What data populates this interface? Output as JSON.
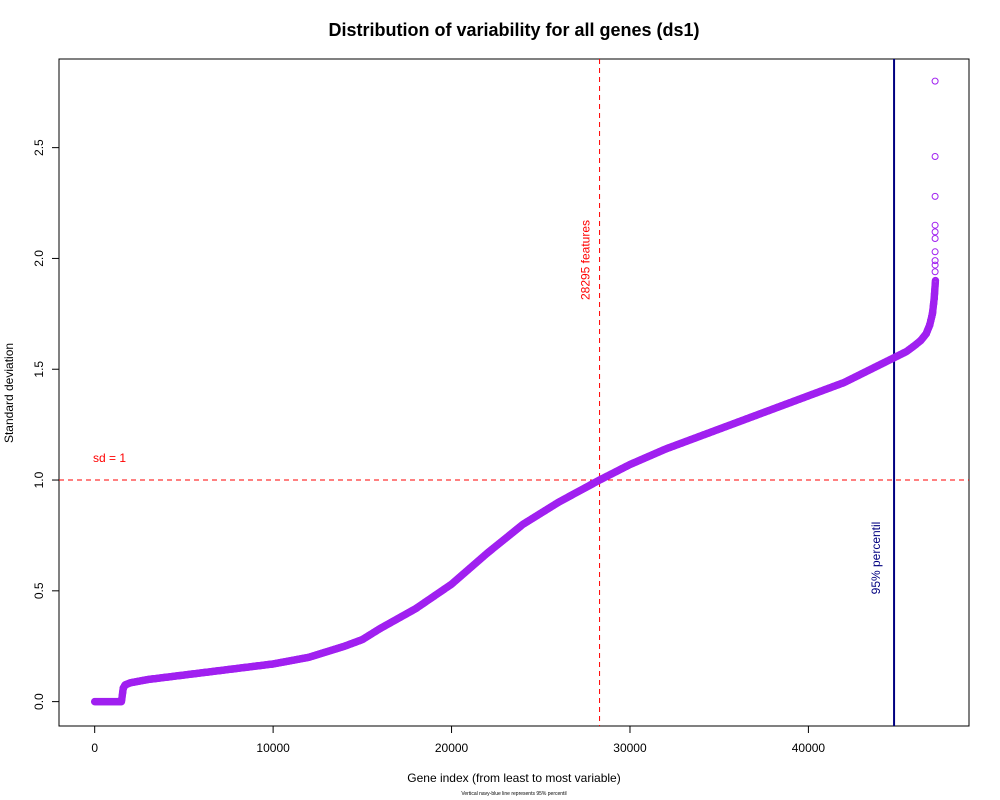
{
  "chart_data": {
    "type": "scatter",
    "title": "Distribution of variability for all genes (ds1)",
    "xlabel": "Gene index (from least to most variable)",
    "ylabel": "Standard deviation",
    "subtitle": "Vertical navy-blue line represents 95% percentil",
    "xlim": [
      -2000,
      49000
    ],
    "ylim": [
      -0.11,
      2.9
    ],
    "x_ticks": [
      0,
      10000,
      20000,
      30000,
      40000
    ],
    "x_tick_labels": [
      "0",
      "10000",
      "20000",
      "30000",
      "40000"
    ],
    "y_ticks": [
      0.0,
      0.5,
      1.0,
      1.5,
      2.0,
      2.5
    ],
    "y_tick_labels": [
      "0.0",
      "0.5",
      "1.0",
      "1.5",
      "2.0",
      "2.5"
    ],
    "grid": false,
    "point_color": "#a020f0",
    "series": [
      {
        "x": [
          0,
          1500,
          1600,
          1700,
          2000,
          3000,
          5000,
          8000,
          10000,
          12000,
          14000,
          15000,
          16000,
          18000,
          20000,
          22000,
          24000,
          26000,
          28295,
          30000,
          32000,
          34000,
          36000,
          38000,
          40000,
          42000,
          43000,
          44000,
          45000,
          45500,
          46000,
          46300,
          46600,
          46800,
          46950,
          47050,
          47120
        ],
        "y": [
          0.0,
          0.0,
          0.06,
          0.075,
          0.085,
          0.1,
          0.12,
          0.15,
          0.17,
          0.2,
          0.25,
          0.28,
          0.33,
          0.42,
          0.53,
          0.67,
          0.8,
          0.9,
          1.0,
          1.07,
          1.14,
          1.2,
          1.26,
          1.32,
          1.38,
          1.44,
          1.48,
          1.52,
          1.56,
          1.58,
          1.61,
          1.63,
          1.66,
          1.7,
          1.75,
          1.82,
          1.9
        ]
      }
    ],
    "outliers": {
      "x": [
        47100,
        47100,
        47100,
        47100,
        47100,
        47100,
        47100,
        47100,
        47100,
        47100
      ],
      "y": [
        2.8,
        2.46,
        2.28,
        2.15,
        2.12,
        2.09,
        2.03,
        1.99,
        1.97,
        1.94
      ]
    },
    "reference_lines": [
      {
        "orientation": "horizontal",
        "value": 1.0,
        "color": "#ff0000",
        "style": "dashed",
        "label": "sd = 1"
      },
      {
        "orientation": "vertical",
        "value": 28295,
        "color": "#ff0000",
        "style": "dashed",
        "label": "28295 features"
      },
      {
        "orientation": "vertical",
        "value": 44800,
        "color": "#000080",
        "style": "solid",
        "label": "95% percentil"
      }
    ]
  }
}
